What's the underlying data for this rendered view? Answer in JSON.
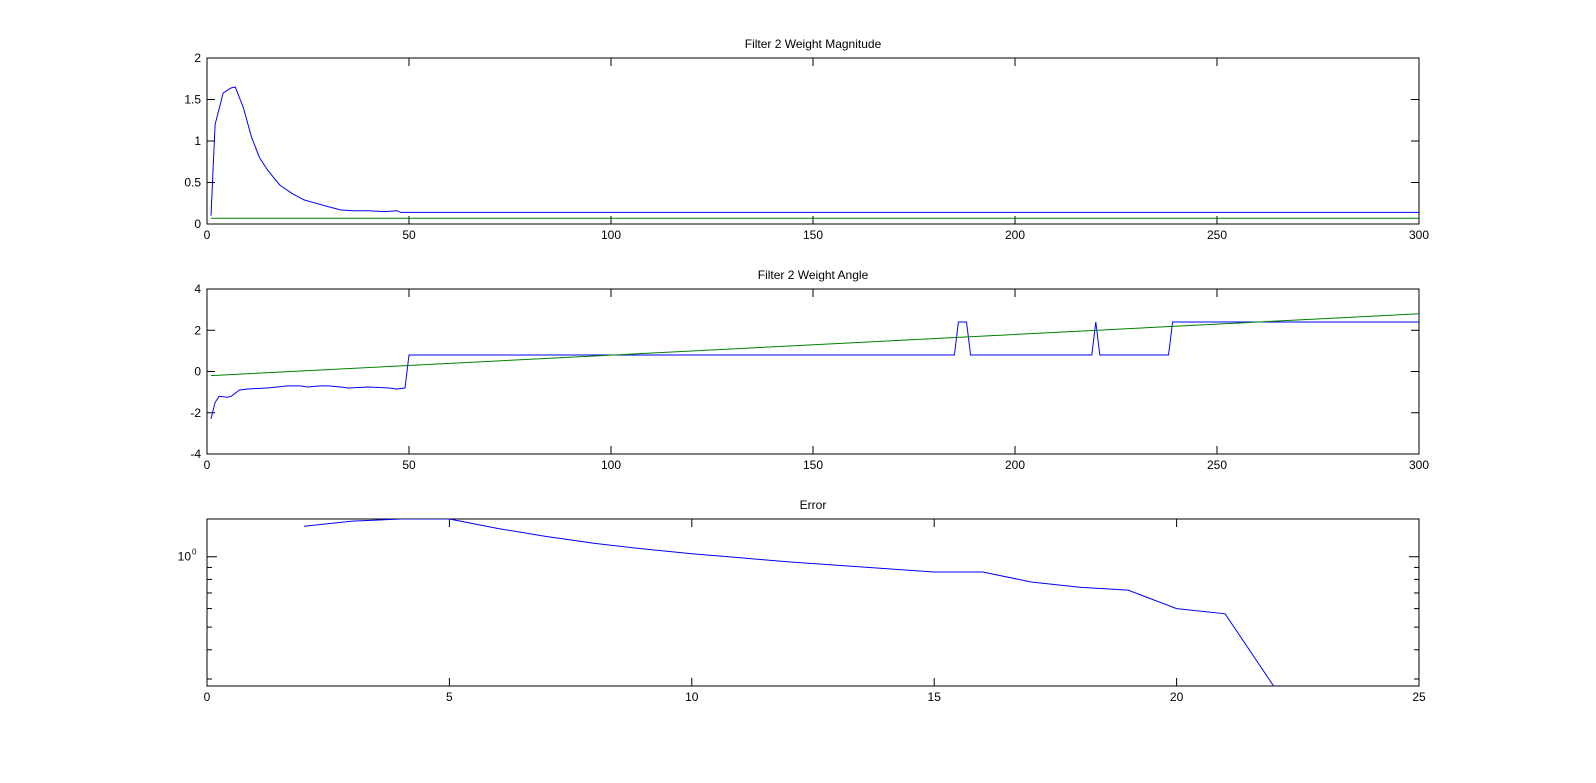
{
  "chart_data": [
    {
      "type": "line",
      "title": "Filter 2 Weight Magnitude",
      "xlim": [
        0,
        300
      ],
      "ylim": [
        0,
        2
      ],
      "xticks": [
        0,
        50,
        100,
        150,
        200,
        250,
        300
      ],
      "yticks": [
        0,
        0.5,
        1,
        1.5,
        2
      ],
      "xtick_labels": [
        "0",
        "50",
        "100",
        "150",
        "200",
        "250",
        "300"
      ],
      "ytick_labels": [
        "0",
        "0.5",
        "1",
        "1.5",
        "2"
      ],
      "grid": false,
      "series": [
        {
          "color": "#0000ff",
          "x": [
            1,
            2,
            4,
            6,
            7,
            9,
            11,
            13,
            15,
            18,
            21,
            24,
            27,
            30,
            33,
            36,
            40,
            44,
            47,
            48,
            50,
            60,
            100,
            150,
            200,
            250,
            300
          ],
          "y": [
            0.1,
            1.2,
            1.58,
            1.64,
            1.65,
            1.4,
            1.05,
            0.8,
            0.65,
            0.47,
            0.37,
            0.29,
            0.25,
            0.21,
            0.17,
            0.16,
            0.16,
            0.15,
            0.16,
            0.14,
            0.14,
            0.14,
            0.14,
            0.14,
            0.14,
            0.14,
            0.14
          ]
        },
        {
          "color": "#008000",
          "x": [
            1,
            300
          ],
          "y": [
            0.07,
            0.07
          ]
        }
      ]
    },
    {
      "type": "line",
      "title": "Filter 2 Weight Angle",
      "xlim": [
        0,
        300
      ],
      "ylim": [
        -4,
        4
      ],
      "xticks": [
        0,
        50,
        100,
        150,
        200,
        250,
        300
      ],
      "yticks": [
        -4,
        -2,
        0,
        2,
        4
      ],
      "xtick_labels": [
        "0",
        "50",
        "100",
        "150",
        "200",
        "250",
        "300"
      ],
      "ytick_labels": [
        "-4",
        "-2",
        "0",
        "2",
        "4"
      ],
      "grid": false,
      "series": [
        {
          "color": "#0000ff",
          "x": [
            1,
            2,
            3,
            5,
            6,
            8,
            10,
            15,
            20,
            23,
            25,
            28,
            30,
            33,
            35,
            40,
            45,
            47,
            49,
            50,
            51,
            100,
            150,
            185,
            186,
            187,
            188,
            189,
            190,
            219,
            220,
            221,
            238,
            239,
            300
          ],
          "y": [
            -2.3,
            -1.5,
            -1.2,
            -1.25,
            -1.2,
            -0.9,
            -0.85,
            -0.8,
            -0.7,
            -0.7,
            -0.75,
            -0.7,
            -0.7,
            -0.75,
            -0.8,
            -0.75,
            -0.8,
            -0.85,
            -0.8,
            0.8,
            0.8,
            0.8,
            0.8,
            0.8,
            2.4,
            2.4,
            2.4,
            0.8,
            0.8,
            0.8,
            2.4,
            0.8,
            0.8,
            2.4,
            2.4
          ]
        },
        {
          "color": "#008000",
          "x": [
            1,
            300
          ],
          "y": [
            -0.2,
            2.8
          ]
        }
      ]
    },
    {
      "type": "line",
      "title": "Error",
      "xlim": [
        0,
        25
      ],
      "ylim": [
        0.28,
        1.45
      ],
      "yscale": "log",
      "xticks": [
        0,
        5,
        10,
        15,
        20,
        25
      ],
      "xtick_labels": [
        "0",
        "5",
        "10",
        "15",
        "20",
        "25"
      ],
      "ytick_label": "10",
      "ytick_label_exponent": "0",
      "grid": false,
      "series": [
        {
          "color": "#0000ff",
          "x": [
            2,
            3,
            4,
            5,
            6,
            7,
            8,
            9,
            10,
            11,
            12,
            13,
            14,
            15,
            16,
            17,
            18,
            19,
            20,
            21,
            22
          ],
          "y": [
            1.35,
            1.42,
            1.45,
            1.45,
            1.32,
            1.22,
            1.14,
            1.08,
            1.03,
            0.99,
            0.95,
            0.92,
            0.89,
            0.86,
            0.86,
            0.78,
            0.74,
            0.72,
            0.6,
            0.57,
            0.28
          ]
        }
      ]
    }
  ]
}
